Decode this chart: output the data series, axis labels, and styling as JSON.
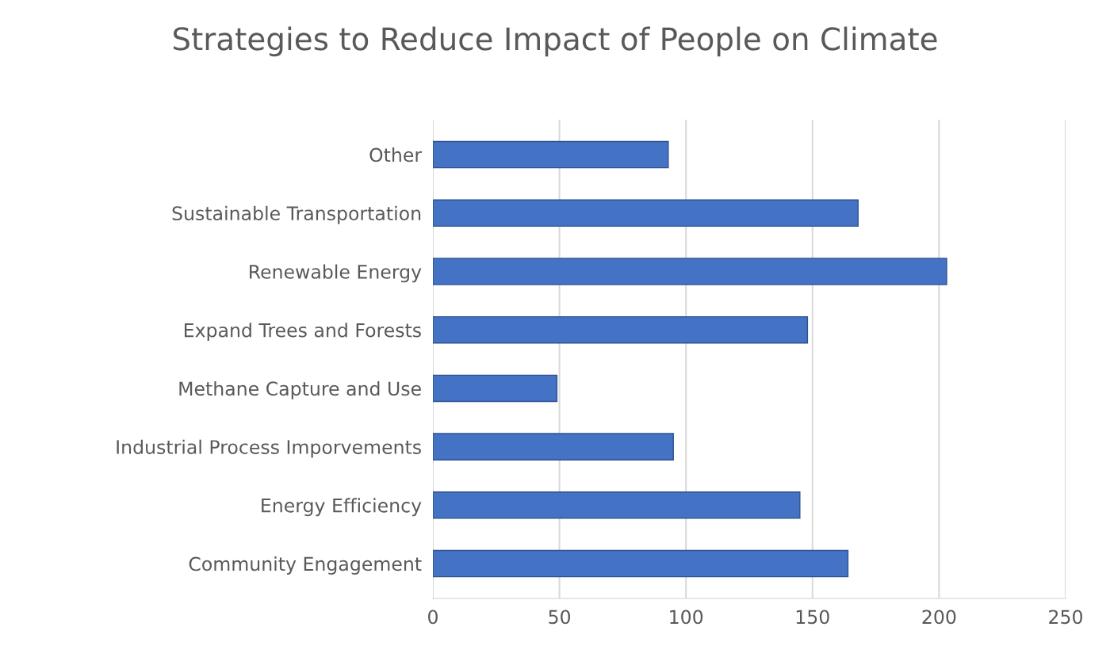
{
  "chart_data": {
    "type": "bar",
    "orientation": "horizontal",
    "title": "Strategies to Reduce Impact of People on Climate",
    "categories": [
      "Other",
      "Sustainable Transportation",
      "Renewable Energy",
      "Expand Trees and Forests",
      "Methane Capture and Use",
      "Industrial Process Imporvements",
      "Energy Efficiency",
      "Community Engagement"
    ],
    "values": [
      93,
      168,
      203,
      148,
      49,
      95,
      145,
      164
    ],
    "color": "#4472c4",
    "xlim": [
      0,
      250
    ],
    "xticks": [
      0,
      50,
      100,
      150,
      200,
      250
    ],
    "grid": "x"
  }
}
